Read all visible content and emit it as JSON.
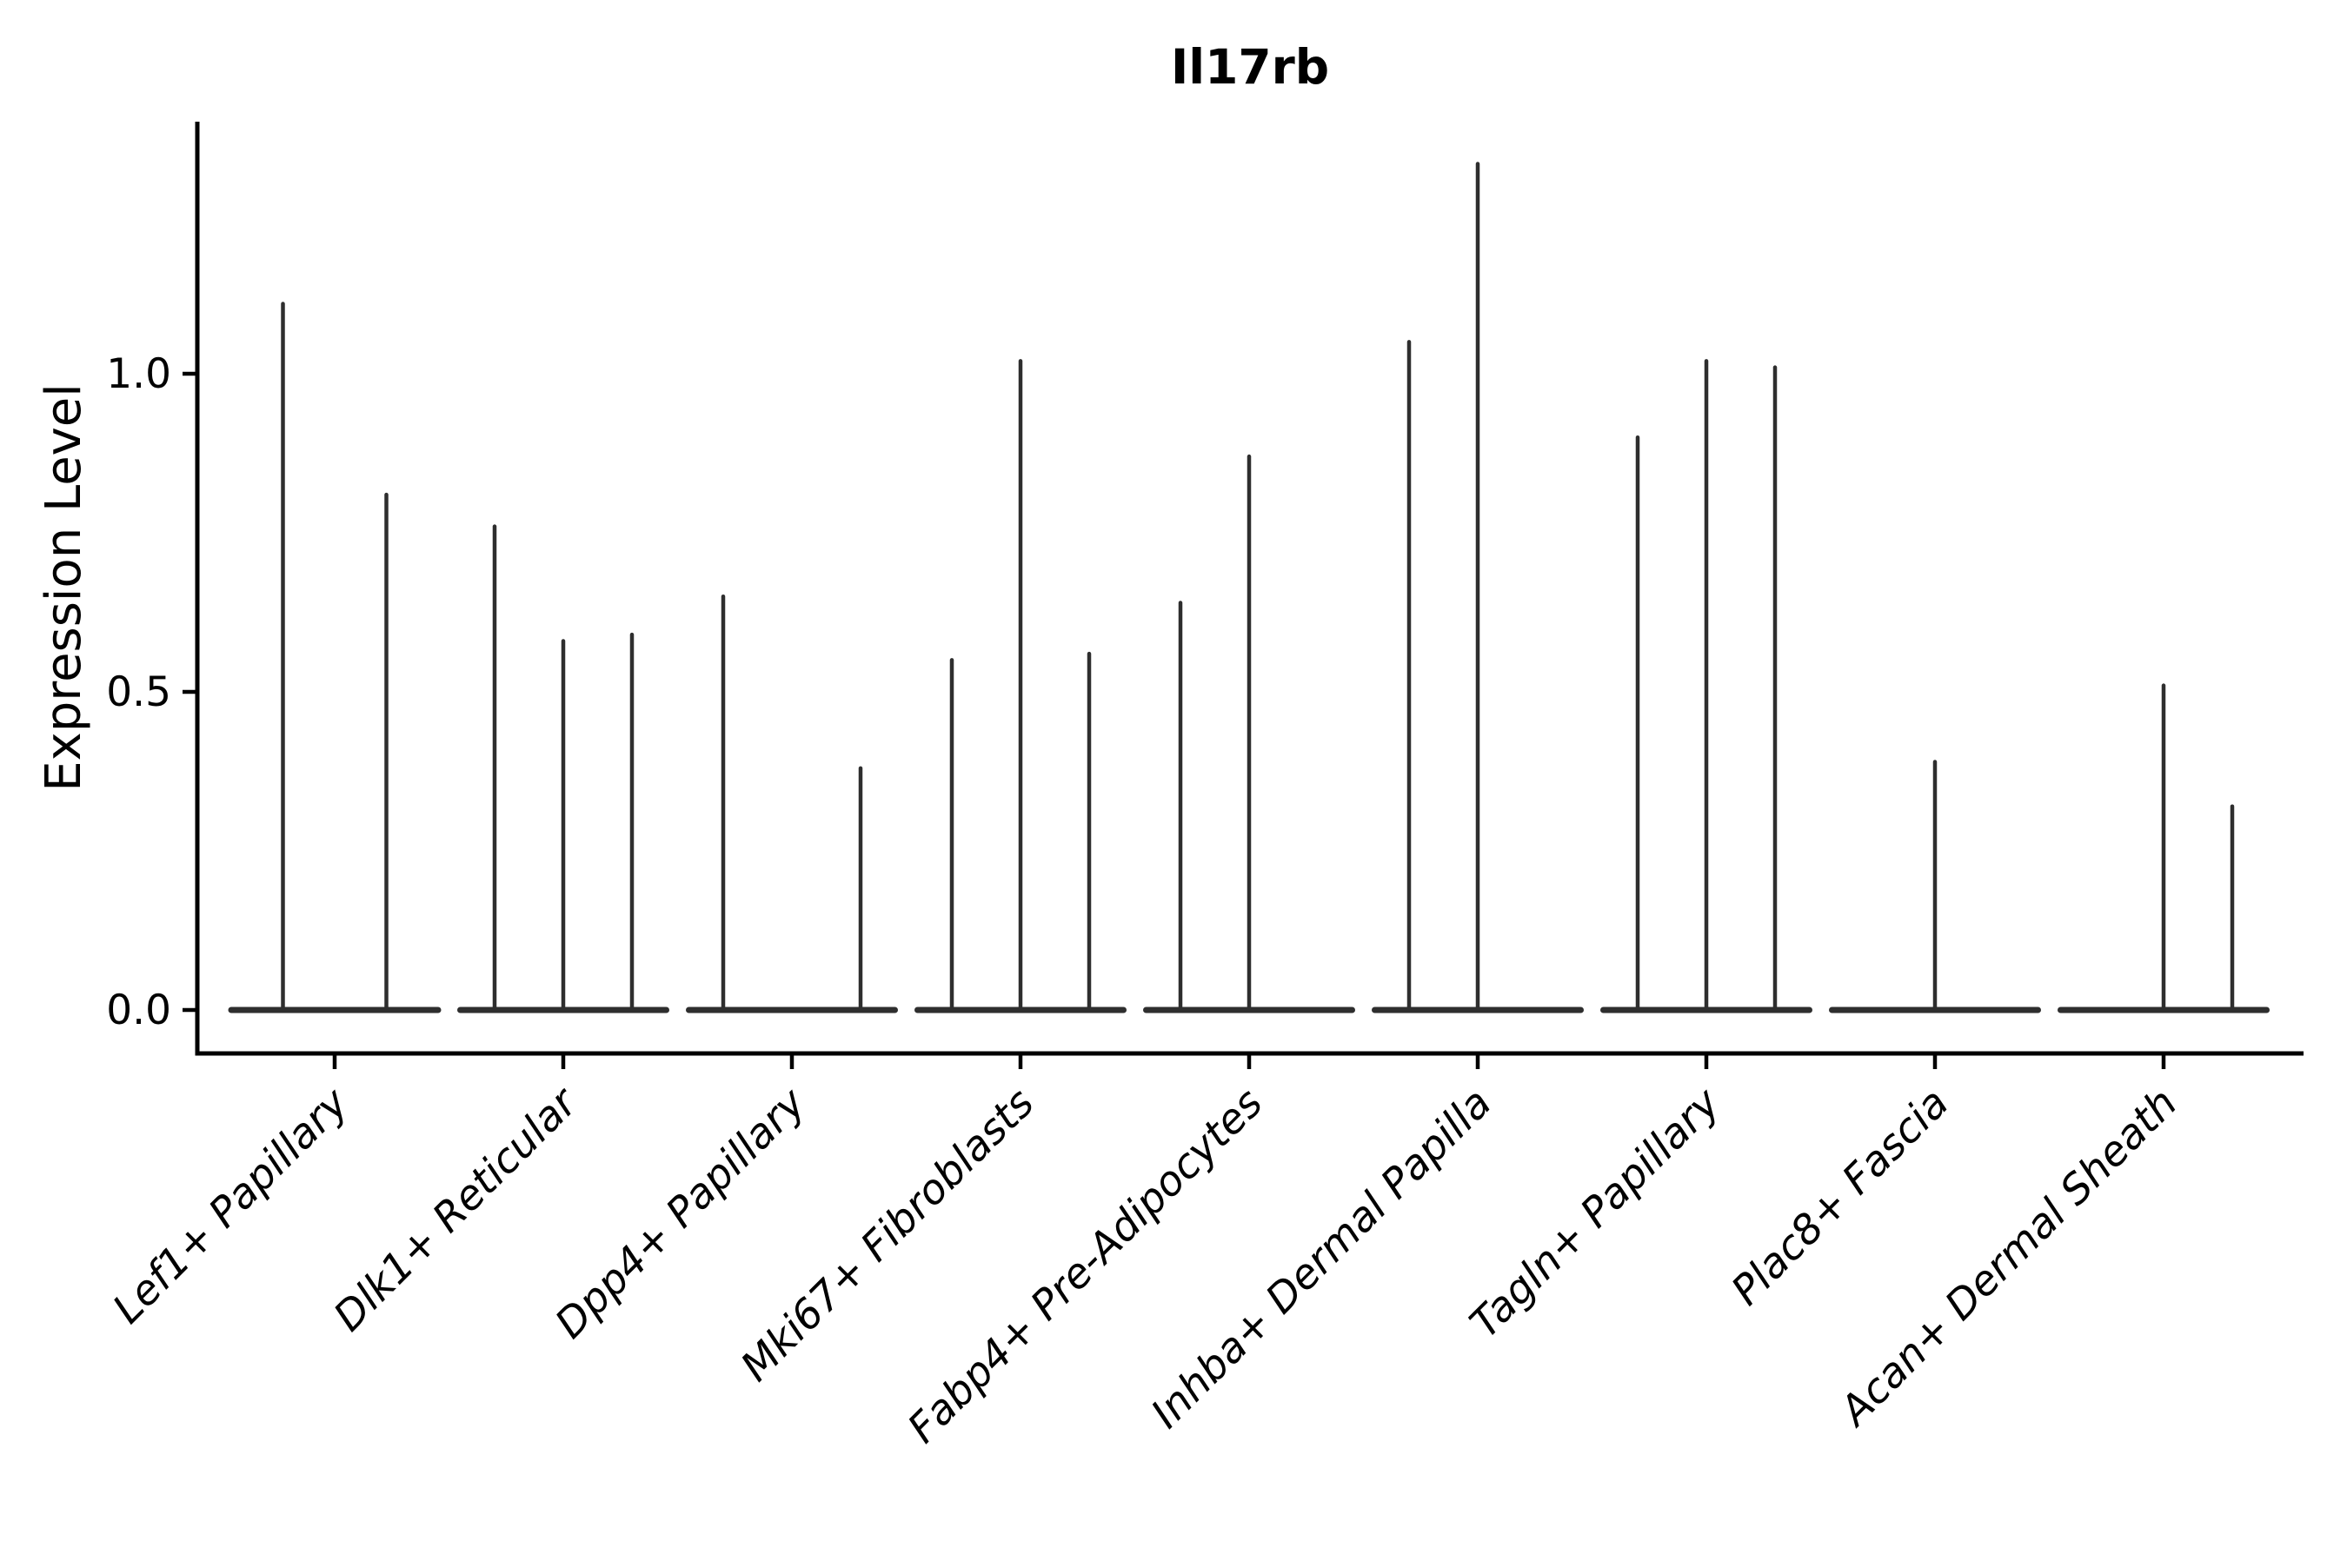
{
  "chart_data": {
    "type": "violin",
    "title": "Il17rb",
    "ylabel": "Expression Level",
    "xlabel": "",
    "yticks": [
      "0.0",
      "0.5",
      "1.0"
    ],
    "ytick_values": [
      0.0,
      0.5,
      1.0
    ],
    "ylim": [
      -0.07,
      1.4
    ],
    "grid": false,
    "legend": null,
    "background": "#ffffff",
    "style": {
      "violin_color": "#2e2e2e",
      "axis_color": "#000000",
      "xtick_label_style": "italic, rotated 45deg",
      "shape_note": "needle violins: flat base at zero expression plus thin spikes up to max value"
    },
    "categories": [
      "Lef1+ Papillary",
      "Dlk1+ Reticular",
      "Dpp4+ Papillary",
      "Mki67+ Fibroblasts",
      "Fabp4+ Pre-Adipocytes",
      "Inhba+ Dermal Papilla",
      "Tagln+ Papillary",
      "Plac8+ Fascia",
      "Acan+ Dermal Sheath"
    ],
    "groups": [
      {
        "label": "Lef1+ Papillary",
        "violin_slots": 2,
        "spikes": [
          {
            "slot": 1,
            "value": 1.11
          },
          {
            "slot": 2,
            "value": 0.81
          }
        ]
      },
      {
        "label": "Dlk1+ Reticular",
        "violin_slots": 3,
        "spikes": [
          {
            "slot": 1,
            "value": 0.76
          },
          {
            "slot": 2,
            "value": 0.58
          },
          {
            "slot": 3,
            "value": 0.59
          }
        ]
      },
      {
        "label": "Dpp4+ Papillary",
        "violin_slots": 3,
        "spikes": [
          {
            "slot": 1,
            "value": 0.65
          },
          {
            "slot": 3,
            "value": 0.38
          }
        ]
      },
      {
        "label": "Mki67+ Fibroblasts",
        "violin_slots": 3,
        "spikes": [
          {
            "slot": 1,
            "value": 0.55
          },
          {
            "slot": 2,
            "value": 1.02
          },
          {
            "slot": 3,
            "value": 0.56
          }
        ]
      },
      {
        "label": "Fabp4+ Pre-Adipocytes",
        "violin_slots": 3,
        "spikes": [
          {
            "slot": 1,
            "value": 0.64
          },
          {
            "slot": 2,
            "value": 0.87
          }
        ]
      },
      {
        "label": "Inhba+ Dermal Papilla",
        "violin_slots": 3,
        "spikes": [
          {
            "slot": 1,
            "value": 1.05
          },
          {
            "slot": 2,
            "value": 1.33
          }
        ]
      },
      {
        "label": "Tagln+ Papillary",
        "violin_slots": 3,
        "spikes": [
          {
            "slot": 1,
            "value": 0.9
          },
          {
            "slot": 2,
            "value": 1.02
          },
          {
            "slot": 3,
            "value": 1.01
          }
        ]
      },
      {
        "label": "Plac8+ Fascia",
        "violin_slots": 3,
        "spikes": [
          {
            "slot": 2,
            "value": 0.39
          }
        ]
      },
      {
        "label": "Acan+ Dermal Sheath",
        "violin_slots": 3,
        "spikes": [
          {
            "slot": 2,
            "value": 0.51
          },
          {
            "slot": 3,
            "value": 0.32
          }
        ]
      }
    ]
  }
}
